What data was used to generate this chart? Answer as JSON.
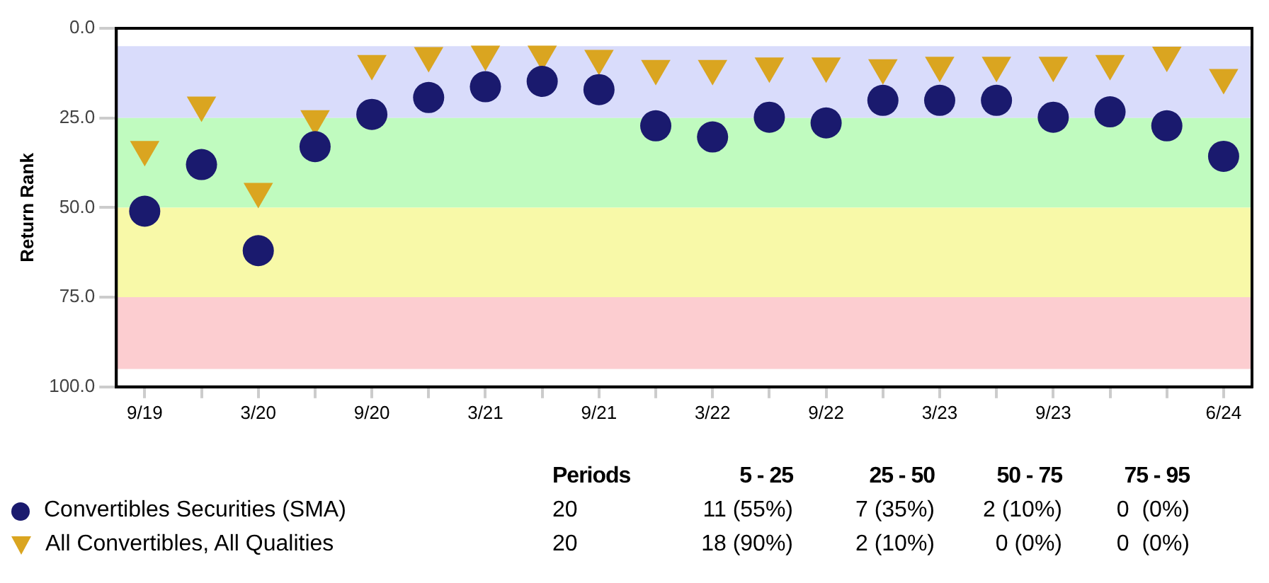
{
  "chart_data": {
    "type": "scatter",
    "ylabel": "Return Rank",
    "categories": [
      "9/19",
      null,
      "3/20",
      null,
      "9/20",
      null,
      "3/21",
      null,
      "9/21",
      null,
      "3/22",
      null,
      "9/22",
      null,
      "3/23",
      null,
      "9/23",
      null,
      null,
      "6/24"
    ],
    "series": [
      {
        "name": "Convertibles Securities (SMA)",
        "color": "#1a1a6e",
        "marker": "circle",
        "values": [
          51,
          38,
          62,
          33,
          24,
          19.3,
          16.3,
          14.8,
          17.1,
          27.2,
          30.3,
          24.8,
          26.4,
          20.1,
          20.1,
          20.1,
          24.8,
          23.3,
          27.2,
          35.7
        ]
      },
      {
        "name": "All Convertibles, All Qualities",
        "color": "#daa520",
        "marker": "triangle",
        "values": [
          33.8,
          21.4,
          45.5,
          25.2,
          9.8,
          7.6,
          7.2,
          7.2,
          8.4,
          11.2,
          11.2,
          10.5,
          10.5,
          11,
          10.3,
          10.3,
          10.3,
          9.8,
          7.5,
          13.7
        ]
      }
    ],
    "ylim": [
      100,
      0
    ],
    "yticks": [
      {
        "value": 0,
        "label": "0.0"
      },
      {
        "value": 25,
        "label": "25.0"
      },
      {
        "value": 50,
        "label": "50.0"
      },
      {
        "value": 75,
        "label": "75.0"
      },
      {
        "value": 100,
        "label": "100.0"
      }
    ],
    "bands": [
      {
        "axis": "y",
        "from": 5,
        "to": 25,
        "color": "#d9dcfb"
      },
      {
        "axis": "y",
        "from": 25,
        "to": 50,
        "color": "#c0fbbf"
      },
      {
        "axis": "y",
        "from": 50,
        "to": 75,
        "color": "#f8f9a8"
      },
      {
        "axis": "y",
        "from": 75,
        "to": 95,
        "color": "#fccdd0"
      }
    ],
    "grid": false,
    "legend": "bottom",
    "annotations": [
      "Periods",
      "5 - 25",
      "25 - 50",
      "50 - 75",
      "75 - 95",
      "20",
      "11 (55%)",
      "7 (35%)",
      "2 (10%)",
      "0  (0%)",
      "20",
      "18 (90%)",
      "2 (10%)",
      "0 (0%)",
      "0  (0%)"
    ]
  }
}
